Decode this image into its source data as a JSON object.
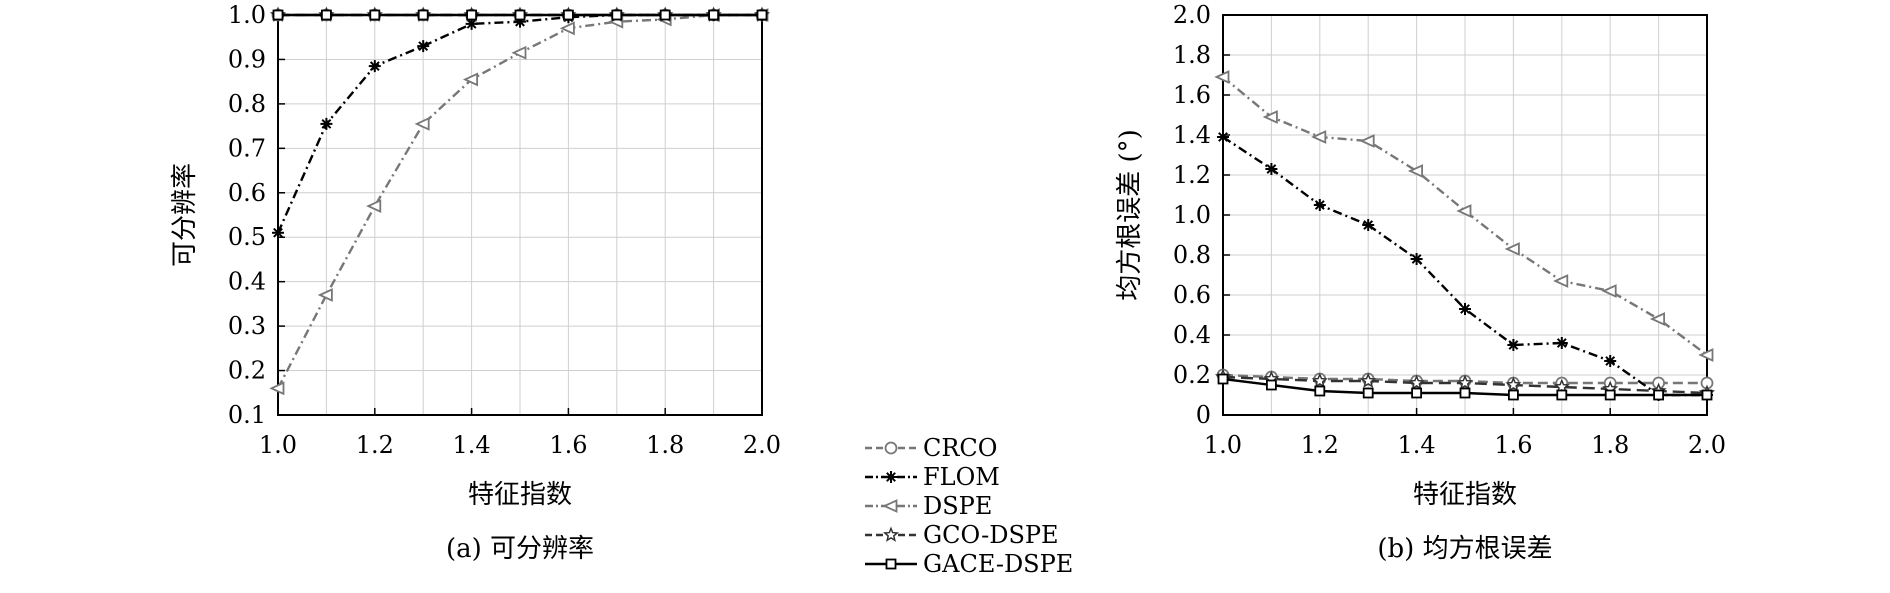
{
  "chart_data": [
    {
      "type": "line",
      "caption": "(a) 可分辨率",
      "xlabel": "特征指数",
      "ylabel": "可分辨率",
      "xlim": [
        1.0,
        2.0
      ],
      "ylim": [
        0.1,
        1.0
      ],
      "x_ticks": [
        "1.0",
        "1.2",
        "1.4",
        "1.6",
        "1.8",
        "2.0"
      ],
      "y_ticks": [
        "0.1",
        "0.2",
        "0.3",
        "0.4",
        "0.5",
        "0.6",
        "0.7",
        "0.8",
        "0.9",
        "1.0"
      ],
      "grid": true,
      "x": [
        1.0,
        1.1,
        1.2,
        1.3,
        1.4,
        1.5,
        1.6,
        1.7,
        1.8,
        1.9,
        2.0
      ],
      "series": [
        {
          "name": "CRCO",
          "values": [
            1,
            1,
            1,
            1,
            1,
            1,
            1,
            1,
            1,
            1,
            1
          ]
        },
        {
          "name": "FLOM",
          "values": [
            0.51,
            0.755,
            0.885,
            0.93,
            0.98,
            0.985,
            0.995,
            1,
            1,
            1,
            1
          ]
        },
        {
          "name": "DSPE",
          "values": [
            0.16,
            0.37,
            0.57,
            0.755,
            0.855,
            0.915,
            0.97,
            0.985,
            0.99,
            1,
            1
          ]
        },
        {
          "name": "GCO-DSPE",
          "values": [
            1,
            1,
            1,
            1,
            1,
            1,
            1,
            1,
            1,
            1,
            1
          ]
        },
        {
          "name": "GACE-DSPE",
          "values": [
            1,
            1,
            1,
            1,
            1,
            1,
            1,
            1,
            1,
            1,
            1
          ]
        }
      ]
    },
    {
      "type": "line",
      "caption": "(b) 均方根误差",
      "xlabel": "特征指数",
      "ylabel": "均方根误差 (°)",
      "xlim": [
        1.0,
        2.0
      ],
      "ylim": [
        0,
        2.0
      ],
      "x_ticks": [
        "1.0",
        "1.2",
        "1.4",
        "1.6",
        "1.8",
        "2.0"
      ],
      "y_ticks": [
        "0",
        "0.2",
        "0.4",
        "0.6",
        "0.8",
        "1.0",
        "1.2",
        "1.4",
        "1.6",
        "1.8",
        "2.0"
      ],
      "grid": true,
      "x": [
        1.0,
        1.1,
        1.2,
        1.3,
        1.4,
        1.5,
        1.6,
        1.7,
        1.8,
        1.9,
        2.0
      ],
      "series": [
        {
          "name": "CRCO",
          "values": [
            0.2,
            0.19,
            0.18,
            0.18,
            0.17,
            0.17,
            0.16,
            0.16,
            0.16,
            0.16,
            0.16
          ]
        },
        {
          "name": "FLOM",
          "values": [
            1.39,
            1.23,
            1.05,
            0.95,
            0.78,
            0.53,
            0.35,
            0.36,
            0.27,
            0.1,
            0.1
          ]
        },
        {
          "name": "DSPE",
          "values": [
            1.69,
            1.49,
            1.39,
            1.37,
            1.22,
            1.02,
            0.83,
            0.67,
            0.62,
            0.48,
            0.3
          ]
        },
        {
          "name": "GCO-DSPE",
          "values": [
            0.19,
            0.18,
            0.17,
            0.17,
            0.16,
            0.16,
            0.15,
            0.14,
            0.13,
            0.12,
            0.11
          ]
        },
        {
          "name": "GACE-DSPE",
          "values": [
            0.18,
            0.15,
            0.12,
            0.11,
            0.11,
            0.11,
            0.1,
            0.1,
            0.1,
            0.1,
            0.1
          ]
        }
      ]
    }
  ],
  "legend": {
    "items": [
      {
        "label": "CRCO",
        "marker": "circle",
        "color": "#777777",
        "dash": "10,5"
      },
      {
        "label": "FLOM",
        "marker": "asterisk",
        "color": "#000000",
        "dash": "9,4,2,4"
      },
      {
        "label": "DSPE",
        "marker": "triangle-left",
        "color": "#777777",
        "dash": "9,4,2,4"
      },
      {
        "label": "GCO-DSPE",
        "marker": "star",
        "color": "#333333",
        "dash": "12,6"
      },
      {
        "label": "GACE-DSPE",
        "marker": "square",
        "color": "#000000",
        "dash": ""
      }
    ]
  }
}
